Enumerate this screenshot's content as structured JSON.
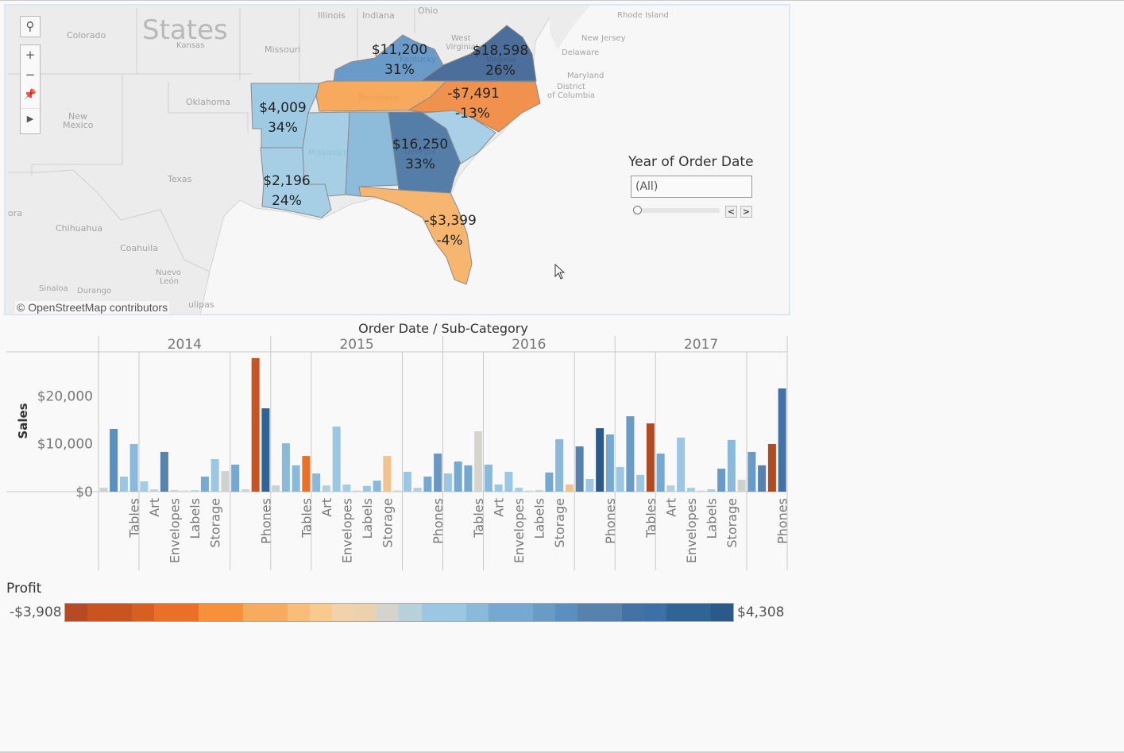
{
  "map": {
    "attribution": "© OpenStreetMap contributors",
    "tools": {
      "search_icon": "search-icon",
      "zoom_in": "+",
      "zoom_out": "−",
      "pin_icon": "pin-icon",
      "expand_icon": "play-icon"
    },
    "background_labels": [
      {
        "text": "States",
        "kind": "country"
      },
      {
        "text": "Colorado"
      },
      {
        "text": "Kansas"
      },
      {
        "text": "Missouri"
      },
      {
        "text": "Illinois"
      },
      {
        "text": "Indiana"
      },
      {
        "text": "Ohio"
      },
      {
        "text": "Oklahoma"
      },
      {
        "text": "New"
      },
      {
        "text": "Mexico"
      },
      {
        "text": "Texas"
      },
      {
        "text": "Chihuahua"
      },
      {
        "text": "Coahuila"
      },
      {
        "text": "Nuevo"
      },
      {
        "text": "León"
      },
      {
        "text": "Sinaloa"
      },
      {
        "text": "Durango"
      },
      {
        "text": "ora"
      },
      {
        "text": "ulipas"
      },
      {
        "text": "West"
      },
      {
        "text": "Virginia"
      },
      {
        "text": "Rhode Island"
      },
      {
        "text": "New Jersey"
      },
      {
        "text": "Delaware"
      },
      {
        "text": "Maryland"
      },
      {
        "text": "District"
      },
      {
        "text": "of Columbia"
      }
    ],
    "states": [
      {
        "name": "Kentucky",
        "profit": "$11,200",
        "ratio": "31%",
        "color": "#6a9bc8"
      },
      {
        "name": "Virginia",
        "profit": "$18,598",
        "ratio": "26%",
        "color": "#4b6f9a"
      },
      {
        "name": "Tennessee",
        "profit": "",
        "ratio": "",
        "color": "#f7a95e"
      },
      {
        "name": "North Carolina",
        "profit": "-$7,491",
        "ratio": "-13%",
        "color": "#f0924e"
      },
      {
        "name": "Arkansas",
        "profit": "$4,009",
        "ratio": "34%",
        "color": "#9ecae4"
      },
      {
        "name": "Mississippi",
        "profit": "",
        "ratio": "",
        "color": "#a6cfe5"
      },
      {
        "name": "Alabama",
        "profit": "",
        "ratio": "",
        "color": "#8dbcdb"
      },
      {
        "name": "Georgia",
        "profit": "$16,250",
        "ratio": "33%",
        "color": "#547ea8"
      },
      {
        "name": "South Carolina",
        "profit": "",
        "ratio": "",
        "color": "#a9d0e6"
      },
      {
        "name": "Louisiana",
        "profit": "$2,196",
        "ratio": "24%",
        "color": "#a6cfe5"
      },
      {
        "name": "Florida",
        "profit": "-$3,399",
        "ratio": "-4%",
        "color": "#f6b66f"
      }
    ]
  },
  "filter": {
    "title": "Year of Order Date",
    "value": "(All)",
    "prev_icon": "chevron-left-icon",
    "next_icon": "chevron-right-icon",
    "slider_position": 0
  },
  "chart_data": {
    "type": "bar",
    "title": "Order Date / Sub-Category",
    "ylabel": "Sales",
    "ylim": [
      0,
      29000
    ],
    "yticks": [
      "$0",
      "$10,000",
      "$20,000"
    ],
    "ytick_values": [
      0,
      10000,
      20000
    ],
    "grid": false,
    "groups_per_year": [
      4,
      9,
      4
    ],
    "tick_labels": [
      "",
      "",
      "",
      "Tables",
      "",
      "Art",
      "",
      "Envelopes",
      "",
      "Labels",
      "",
      "Storage",
      "",
      "",
      "",
      "",
      "Phones"
    ],
    "years": [
      {
        "year": "2014",
        "values": [
          800,
          13100,
          3150,
          9950,
          2150,
          500,
          8300,
          350,
          200,
          350,
          3150,
          6800,
          4300,
          5650,
          500,
          27900,
          17400
        ],
        "colors": [
          "#c9d3d2",
          "#5b8fc0",
          "#9cc7e2",
          "#8ab9da",
          "#a2cce4",
          "#c6d4d4",
          "#5782ad",
          "#ccd5d4",
          "#d0d6d2",
          "#c8d6d8",
          "#77abd2",
          "#9cc7e2",
          "#cdd3ce",
          "#75a9d1",
          "#cdd4d2",
          "#c95422",
          "#2f6494"
        ]
      },
      {
        "year": "2015",
        "values": [
          1300,
          10100,
          5500,
          7450,
          3800,
          1300,
          13600,
          1500,
          200,
          1200,
          2300,
          7450,
          150,
          4150,
          800,
          3150,
          7950
        ],
        "colors": [
          "#c7d3d3",
          "#8ab9da",
          "#8ab9da",
          "#ea7028",
          "#8ab9da",
          "#b5d0dd",
          "#9cc7e2",
          "#a7cde3",
          "#d0d6d2",
          "#9cc7e2",
          "#8ab9da",
          "#f2c38d",
          "#d0d4ce",
          "#9cc7e2",
          "#b3cfdc",
          "#75a9d1",
          "#6897c3"
        ]
      },
      {
        "year": "2016",
        "values": [
          3800,
          6300,
          5500,
          12600,
          5650,
          1500,
          4150,
          800,
          150,
          350,
          4000,
          10950,
          1500,
          9450,
          2650,
          13250,
          11950
        ],
        "colors": [
          "#9cc7e2",
          "#75a9d1",
          "#75a9d1",
          "#d4d4cc",
          "#8ab9da",
          "#9cc7e2",
          "#9cc7e2",
          "#a7cde3",
          "#d0d6d2",
          "#c8d6d8",
          "#75a9d1",
          "#8ab9da",
          "#f2c38d",
          "#5782ad",
          "#9cc7e2",
          "#2b5a8a",
          "#75a9d1"
        ]
      },
      {
        "year": "2017",
        "values": [
          5150,
          15750,
          3500,
          14250,
          7950,
          1300,
          11300,
          800,
          150,
          500,
          4800,
          10800,
          2500,
          8300,
          5500,
          9950,
          21550
        ],
        "colors": [
          "#9cc7e2",
          "#6a9bc6",
          "#9cc7e2",
          "#b24a22",
          "#75a9d1",
          "#b5d0dd",
          "#9cc7e2",
          "#a7cde3",
          "#d0d6d2",
          "#a7cde3",
          "#6a9bc6",
          "#8ab9da",
          "#cdd4d0",
          "#6a9bc6",
          "#5782ad",
          "#b24a22",
          "#4373a5"
        ]
      }
    ]
  },
  "legend": {
    "title": "Profit",
    "min": "-$3,908",
    "max": "$4,308",
    "colors": [
      "#b54a24",
      "#c9541f",
      "#c9541f",
      "#d85f22",
      "#ea7028",
      "#ea7028",
      "#f6903a",
      "#f6903a",
      "#f6ab5e",
      "#f6ab5e",
      "#f8bd78",
      "#f9c98d",
      "#f2d2aa",
      "#ebd1ad",
      "#d4d4cc",
      "#b8d0da",
      "#9cc7e2",
      "#9cc7e2",
      "#8ab9da",
      "#75a9d1",
      "#75a9d1",
      "#6a9bc6",
      "#5b8fc0",
      "#5782ad",
      "#5782ad",
      "#4373a5",
      "#3c70a6",
      "#2f6494",
      "#2f6494",
      "#2b5a8a"
    ]
  }
}
